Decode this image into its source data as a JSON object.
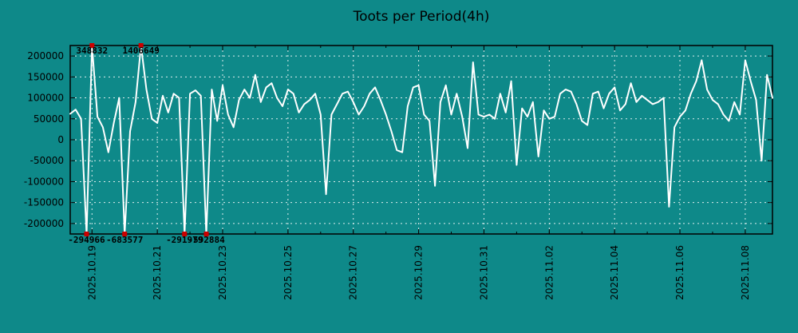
{
  "chart_data": {
    "type": "line",
    "title": "Toots per Period(4h)",
    "x_start": "2025-10-18 08:00",
    "x_interval_hours": 4,
    "values": [
      62000,
      72000,
      50000,
      -294966,
      348832,
      55000,
      30000,
      -30000,
      40000,
      100000,
      -683577,
      20000,
      90000,
      1406649,
      120000,
      50000,
      40000,
      105000,
      65000,
      110000,
      100000,
      -291979,
      110000,
      118000,
      105000,
      -592884,
      120000,
      45000,
      130000,
      60000,
      30000,
      95000,
      120000,
      100000,
      155000,
      90000,
      125000,
      135000,
      100000,
      80000,
      120000,
      110000,
      65000,
      85000,
      95000,
      110000,
      60000,
      -130000,
      60000,
      85000,
      110000,
      115000,
      90000,
      60000,
      80000,
      110000,
      125000,
      95000,
      60000,
      20000,
      -25000,
      -30000,
      80000,
      125000,
      130000,
      60000,
      45000,
      -110000,
      90000,
      130000,
      60000,
      110000,
      55000,
      -20000,
      185000,
      60000,
      55000,
      60000,
      50000,
      110000,
      65000,
      140000,
      -60000,
      75000,
      55000,
      90000,
      -40000,
      70000,
      50000,
      55000,
      110000,
      120000,
      115000,
      85000,
      45000,
      35000,
      110000,
      115000,
      75000,
      110000,
      125000,
      70000,
      85000,
      135000,
      90000,
      105000,
      95000,
      85000,
      90000,
      100000,
      -160000,
      30000,
      55000,
      70000,
      110000,
      140000,
      190000,
      120000,
      95000,
      85000,
      60000,
      45000,
      90000,
      60000,
      190000,
      140000,
      95000,
      -50000,
      155000,
      100000
    ],
    "y_range": [
      -225000,
      225000
    ],
    "ytick_values": [
      200000,
      150000,
      100000,
      50000,
      0,
      -50000,
      -100000,
      -150000,
      -200000
    ],
    "ytick_labels": [
      "200000",
      "150000",
      "100000",
      "50000",
      "0",
      "-50000",
      "-100000",
      "-150000",
      "-200000"
    ],
    "xticks": [
      {
        "index": 4,
        "label": "2025.10.19"
      },
      {
        "index": 16,
        "label": "2025.10.21"
      },
      {
        "index": 28,
        "label": "2025.10.23"
      },
      {
        "index": 40,
        "label": "2025.10.25"
      },
      {
        "index": 52,
        "label": "2025.10.27"
      },
      {
        "index": 64,
        "label": "2025.10.29"
      },
      {
        "index": 76,
        "label": "2025.10.31"
      },
      {
        "index": 88,
        "label": "2025.11.02"
      },
      {
        "index": 100,
        "label": "2025.11.04"
      },
      {
        "index": 112,
        "label": "2025.11.06"
      },
      {
        "index": 124,
        "label": "2025.11.08"
      }
    ],
    "minor_tick_start": 4,
    "minor_tick_step": 6,
    "annotations": [
      {
        "index": 3,
        "label": "-294966",
        "edge": "bottom"
      },
      {
        "index": 4,
        "label": "348832",
        "edge": "top"
      },
      {
        "index": 10,
        "label": "-683577",
        "edge": "bottom"
      },
      {
        "index": 13,
        "label": "1406649",
        "edge": "top"
      },
      {
        "index": 21,
        "label": "-291979",
        "edge": "bottom"
      },
      {
        "index": 25,
        "label": "-592884",
        "edge": "bottom"
      }
    ],
    "colors": {
      "background": "#0e8989",
      "line": "#ffffff",
      "marker": "#cc0000",
      "grid": "#ffffff",
      "text": "#000000",
      "border": "#000000"
    },
    "grid": "dashed",
    "legend": "none"
  }
}
